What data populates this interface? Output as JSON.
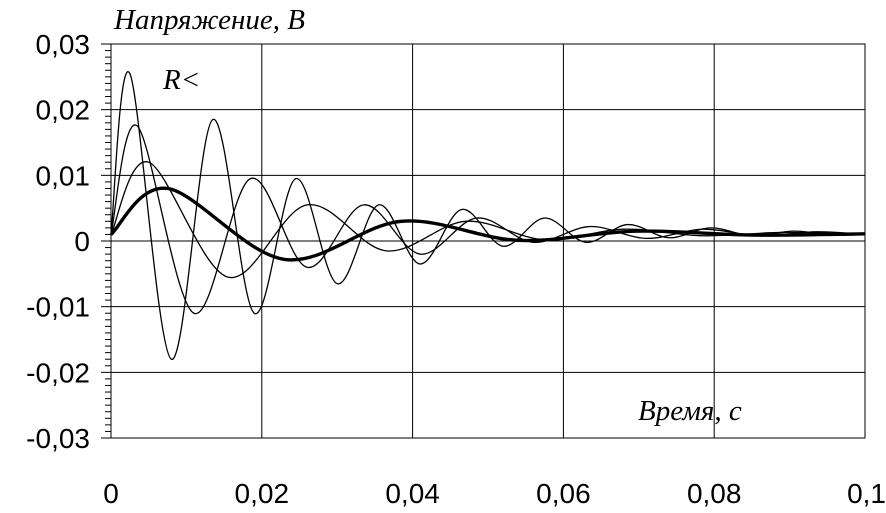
{
  "chart_data": {
    "type": "line",
    "ylabel": "Напряжение, В",
    "xlabel": "Время, с",
    "annotation": "R<",
    "xlim": [
      0,
      0.1
    ],
    "ylim": [
      -0.03,
      0.03
    ],
    "xticks": [
      0,
      0.02,
      0.04,
      0.06,
      0.08,
      0.1
    ],
    "xtick_labels": [
      "0",
      "0,02",
      "0,04",
      "0,06",
      "0,08",
      "0,1"
    ],
    "yticks": [
      0.03,
      0.02,
      0.01,
      0,
      -0.01,
      -0.02,
      -0.03
    ],
    "ytick_labels": [
      "0,03",
      "0,02",
      "0,01",
      "0",
      "-0,01",
      "-0,02",
      "-0,03"
    ],
    "grid": true,
    "series": [
      {
        "style": "thin",
        "x": [
          0,
          0.0025,
          0.008,
          0.0135,
          0.019,
          0.0245,
          0.03,
          0.0355,
          0.041,
          0.0465,
          0.052,
          0.0575,
          0.063,
          0.0685,
          0.074,
          0.0795,
          0.085,
          0.0905,
          0.096,
          0.1
        ],
        "y": [
          0.001,
          0.0255,
          -0.018,
          0.0185,
          -0.011,
          0.0095,
          -0.0065,
          0.0055,
          -0.0035,
          0.0048,
          -0.0008,
          0.0035,
          -0.0002,
          0.0025,
          0.0005,
          0.002,
          0.0008,
          0.0015,
          0.0009,
          0.001
        ]
      },
      {
        "style": "thin",
        "x": [
          0,
          0.0035,
          0.011,
          0.0185,
          0.026,
          0.0335,
          0.041,
          0.0485,
          0.056,
          0.0635,
          0.071,
          0.0785,
          0.086,
          0.0935,
          0.1
        ],
        "y": [
          0.001,
          0.0175,
          -0.011,
          0.0095,
          -0.004,
          0.0055,
          -0.002,
          0.0035,
          -0.0002,
          0.0022,
          0.0004,
          0.0018,
          0.0008,
          0.0014,
          0.001
        ]
      },
      {
        "style": "thin",
        "x": [
          0,
          0.005,
          0.0155,
          0.026,
          0.0365,
          0.047,
          0.0575,
          0.068,
          0.0785,
          0.089,
          0.1
        ],
        "y": [
          0.001,
          0.012,
          -0.0055,
          0.0055,
          -0.0015,
          0.003,
          0.0002,
          0.0018,
          0.0008,
          0.0013,
          0.001
        ]
      },
      {
        "style": "bold",
        "x": [
          0,
          0.0075,
          0.023,
          0.0385,
          0.054,
          0.0695,
          0.085,
          0.1
        ],
        "y": [
          0.001,
          0.008,
          -0.0028,
          0.003,
          0.0001,
          0.0015,
          0.0009,
          0.0011
        ]
      }
    ]
  }
}
